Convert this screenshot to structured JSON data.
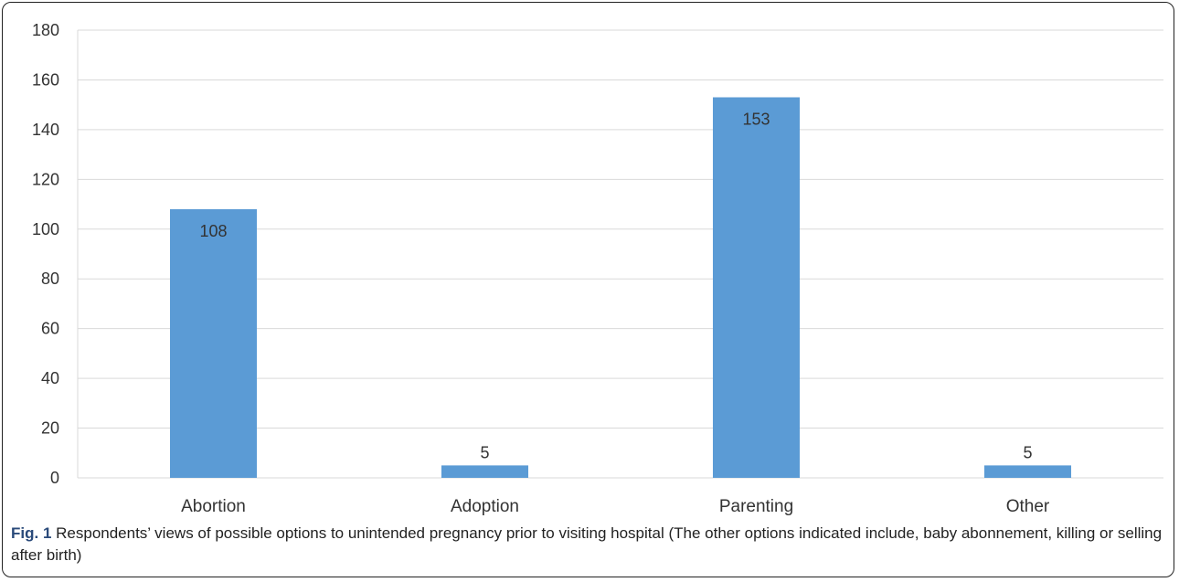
{
  "chart_data": {
    "type": "bar",
    "categories": [
      "Abortion",
      "Adoption",
      "Parenting",
      "Other"
    ],
    "values": [
      108,
      5,
      153,
      5
    ],
    "data_labels": [
      "108",
      "5",
      "153",
      "5"
    ],
    "ylim": [
      0,
      180
    ],
    "y_ticks": [
      0,
      20,
      40,
      60,
      80,
      100,
      120,
      140,
      160,
      180
    ],
    "grid": true,
    "legend": "none",
    "bar_color": "#5b9bd5",
    "grid_color": "#d9d9d9"
  },
  "caption": {
    "label": "Fig. 1",
    "text": " Respondents’ views of possible options to unintended pregnancy prior to visiting hospital (The other options indicated include, baby abonnement, killing or selling after birth)"
  }
}
